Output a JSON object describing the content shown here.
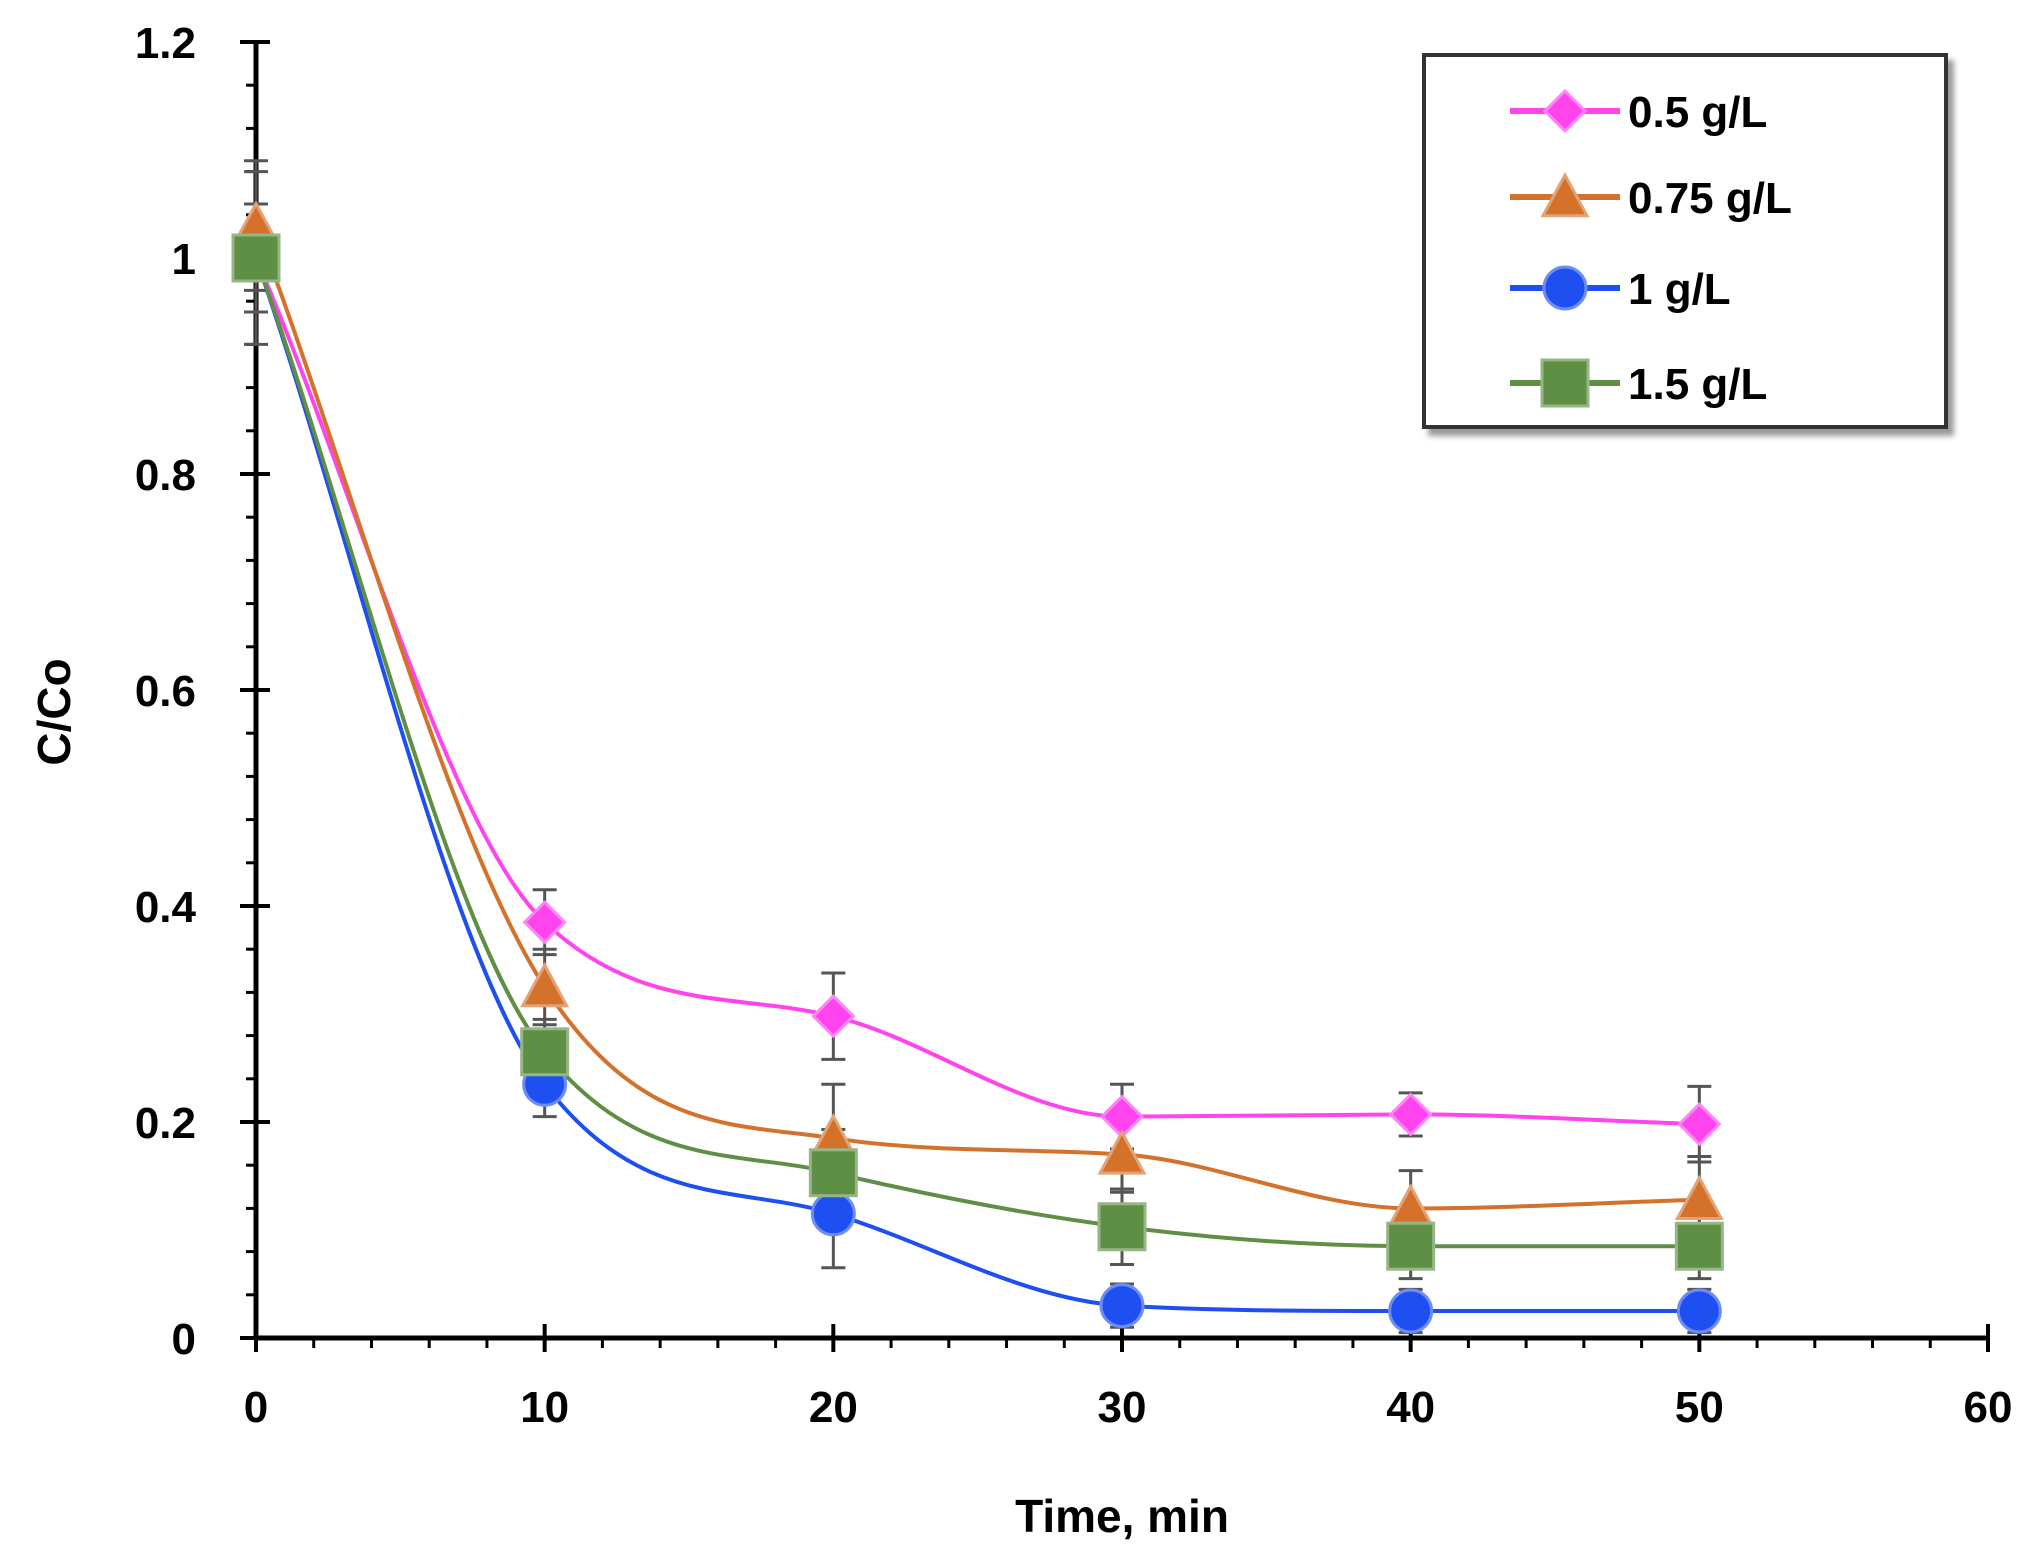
{
  "chart_data": {
    "type": "line",
    "title": "",
    "xlabel": "Time, min",
    "ylabel": "C/Co",
    "xlim": [
      0,
      60
    ],
    "ylim": [
      0,
      1.2
    ],
    "xticks": [
      0,
      10,
      20,
      30,
      40,
      50,
      60
    ],
    "yticks": [
      0,
      0.2,
      0.4,
      0.6,
      0.8,
      1,
      1.2
    ],
    "xtick_labels": [
      "0",
      "10",
      "20",
      "30",
      "40",
      "50",
      "60"
    ],
    "ytick_labels": [
      "0",
      "0.2",
      "0.4",
      "0.6",
      "0.8",
      "1",
      "1.2"
    ],
    "x_minor_step": 2,
    "y_minor_step": 0.04,
    "grid": false,
    "legend_position": "top-right",
    "x": [
      0,
      10,
      20,
      30,
      40,
      50
    ],
    "series": [
      {
        "name": "0.5 g/L",
        "color": "#ff44ee",
        "marker": "diamond",
        "values": [
          1.0,
          0.385,
          0.298,
          0.205,
          0.207,
          0.198
        ],
        "errors": [
          0.08,
          0.03,
          0.04,
          0.03,
          0.02,
          0.035
        ]
      },
      {
        "name": "0.75 g/L",
        "color": "#d4712b",
        "marker": "triangle",
        "values": [
          1.03,
          0.325,
          0.185,
          0.17,
          0.12,
          0.128
        ],
        "errors": [
          0.06,
          0.035,
          0.05,
          0.035,
          0.035,
          0.04
        ]
      },
      {
        "name": "1 g/L",
        "color": "#1e4ff0",
        "marker": "circle",
        "values": [
          1.0,
          0.235,
          0.115,
          0.03,
          0.025,
          0.025
        ],
        "errors": [
          0.05,
          0.03,
          0.05,
          0.02,
          0.02,
          0.02
        ]
      },
      {
        "name": "1.5 g/L",
        "color": "#5f8f45",
        "marker": "square",
        "values": [
          1.0,
          0.265,
          0.153,
          0.103,
          0.085,
          0.085
        ],
        "errors": [
          0.05,
          0.03,
          0.04,
          0.035,
          0.03,
          0.03
        ]
      }
    ]
  }
}
